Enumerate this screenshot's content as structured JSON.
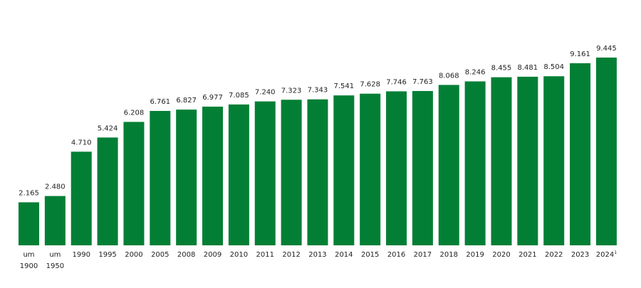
{
  "chart_data": {
    "type": "bar",
    "title": "",
    "xlabel": "",
    "ylabel": "",
    "ylim": [
      0,
      12340
    ],
    "grid": false,
    "bar_color": "#037F35",
    "categories": [
      [
        "um",
        "1900"
      ],
      [
        "um",
        "1950"
      ],
      [
        "1990"
      ],
      [
        "1995"
      ],
      [
        "2000"
      ],
      [
        "2005"
      ],
      [
        "2008"
      ],
      [
        "2009"
      ],
      [
        "2010"
      ],
      [
        "2011"
      ],
      [
        "2012"
      ],
      [
        "2013"
      ],
      [
        "2014"
      ],
      [
        "2015"
      ],
      [
        "2016"
      ],
      [
        "2017"
      ],
      [
        "2018"
      ],
      [
        "2019"
      ],
      [
        "2020"
      ],
      [
        "2021"
      ],
      [
        "2022"
      ],
      [
        "2023"
      ],
      [
        "2024",
        "1"
      ]
    ],
    "values": [
      2165,
      2480,
      4710,
      5424,
      6208,
      6761,
      6827,
      6977,
      7085,
      7240,
      7323,
      7343,
      7541,
      7628,
      7746,
      7763,
      8068,
      8246,
      8455,
      8481,
      8504,
      9161,
      9445
    ],
    "value_labels": [
      "2.165",
      "2.480",
      "4.710",
      "5.424",
      "6.208",
      "6.761",
      "6.827",
      "6.977",
      "7.085",
      "7.240",
      "7.323",
      "7.343",
      "7.541",
      "7.628",
      "7.746",
      "7.763",
      "8.068",
      "8.246",
      "8.455",
      "8.481",
      "8.504",
      "9.161",
      "9.445"
    ]
  }
}
